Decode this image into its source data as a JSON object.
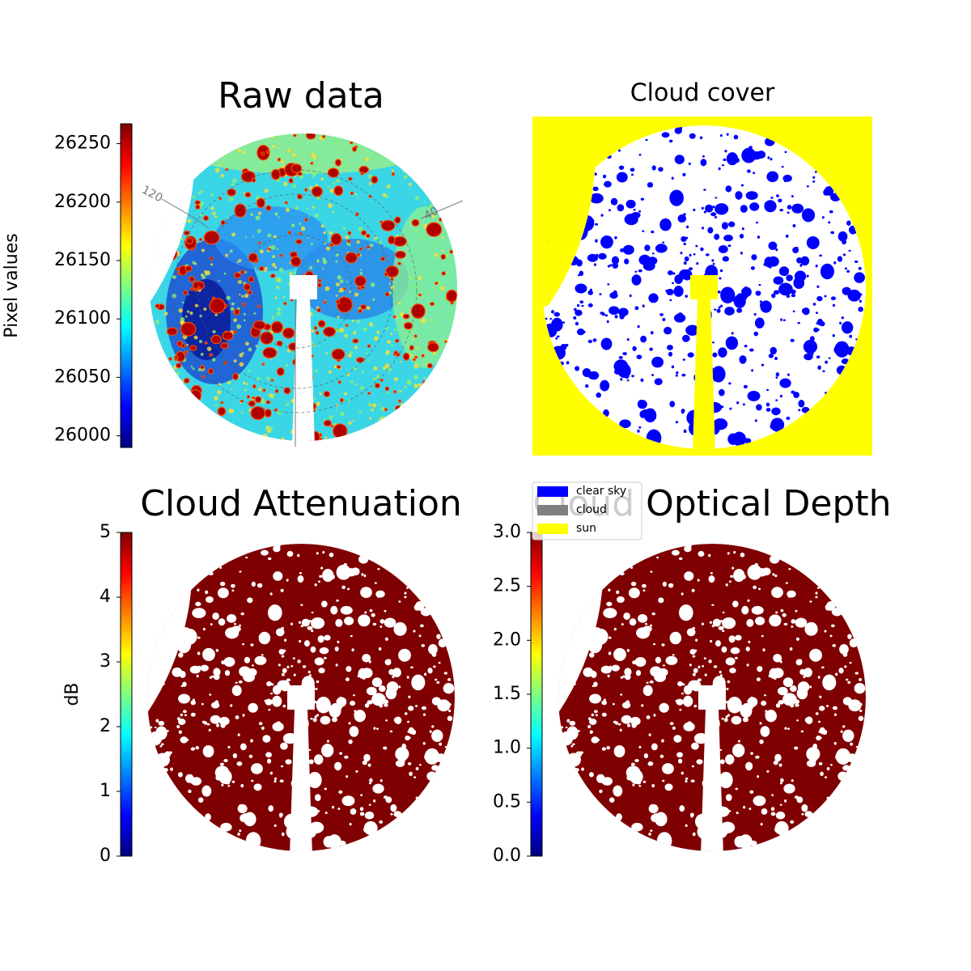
{
  "chart_data": [
    {
      "type": "image",
      "title": "Raw data",
      "ylabel": "Pixel values",
      "colormap": "jet",
      "ylim": [
        25990,
        26267
      ],
      "yticks": [
        26000,
        26050,
        26100,
        26150,
        26200,
        26250
      ],
      "annotations": [
        "120",
        "40"
      ]
    },
    {
      "type": "image",
      "title": "Cloud cover",
      "legend": [
        {
          "name": "clear sky",
          "color": "#0000ff"
        },
        {
          "name": "cloud",
          "color": "#808080"
        },
        {
          "name": "sun",
          "color": "#ffff00"
        }
      ]
    },
    {
      "type": "image",
      "title": "Cloud Attenuation",
      "ylabel": "dB",
      "colormap": "jet",
      "ylim": [
        0,
        5
      ],
      "yticks": [
        0,
        1,
        2,
        3,
        4,
        5
      ]
    },
    {
      "type": "image",
      "title": "Cloud Optical Depth",
      "colormap": "jet",
      "ylim": [
        0,
        3
      ],
      "yticks": [
        {
          "value": 0,
          "label": "0.0"
        },
        {
          "value": 0.5,
          "label": "0.5"
        },
        {
          "value": 1,
          "label": "1.0"
        },
        {
          "value": 1.5,
          "label": "1.5"
        },
        {
          "value": 2,
          "label": "2.0"
        },
        {
          "value": 2.5,
          "label": "2.5"
        },
        {
          "value": 3,
          "label": "3.0"
        }
      ]
    }
  ]
}
